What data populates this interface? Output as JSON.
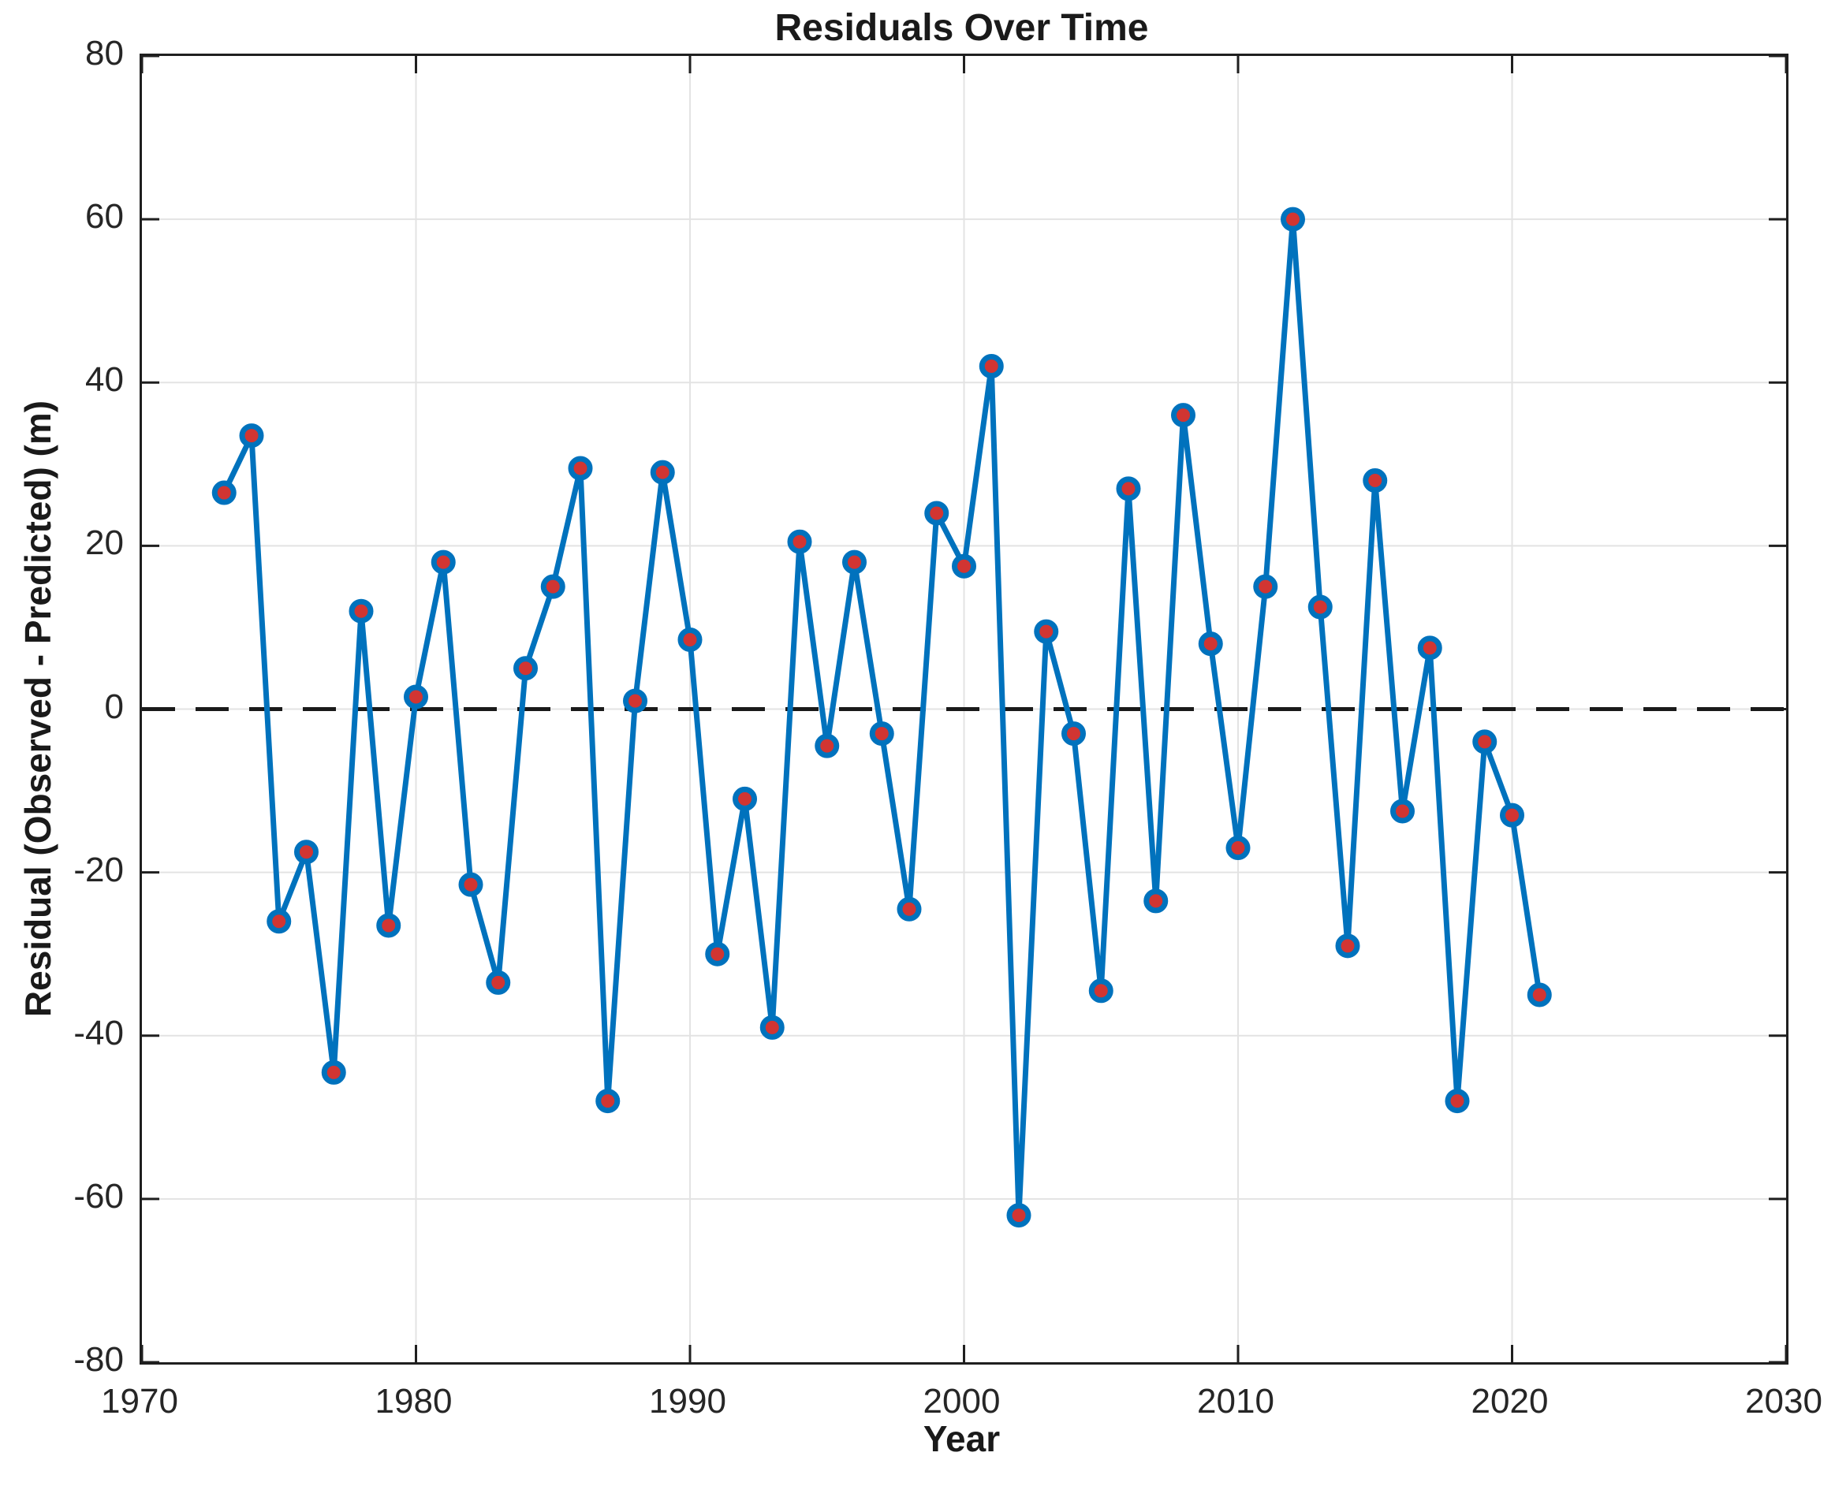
{
  "figure": {
    "title": "Residuals Over Time",
    "x_axis_label": "Year",
    "y_axis_label": "Residual (Observed - Predicted) (m)"
  },
  "chart_data": {
    "type": "line",
    "title": "Residuals Over Time",
    "xlabel": "Year",
    "ylabel": "Residual (Observed - Predicted) (m)",
    "xlim": [
      1970,
      2030
    ],
    "ylim": [
      -80,
      80
    ],
    "x_ticks": [
      1970,
      1980,
      1990,
      2000,
      2010,
      2020,
      2030
    ],
    "y_ticks": [
      -80,
      -60,
      -40,
      -20,
      0,
      20,
      40,
      60,
      80
    ],
    "grid": true,
    "legend": "none",
    "zero_line": {
      "y": 0,
      "style": "dashed",
      "color": "#1a1a1a"
    },
    "colors": {
      "line": "#0072BD",
      "marker_face": "#D13532",
      "marker_edge": "#0072BD",
      "gridline": "#e3e3e3",
      "axis_box": "#1f1f1f",
      "tick_text": "#262626",
      "label_text": "#1a1a1a"
    },
    "series": [
      {
        "name": "residuals",
        "x": [
          1973,
          1974,
          1975,
          1976,
          1977,
          1978,
          1979,
          1980,
          1981,
          1982,
          1983,
          1984,
          1985,
          1986,
          1987,
          1988,
          1989,
          1990,
          1991,
          1992,
          1993,
          1994,
          1995,
          1996,
          1997,
          1998,
          1999,
          2000,
          2001,
          2002,
          2003,
          2004,
          2005,
          2006,
          2007,
          2008,
          2009,
          2010,
          2011,
          2012,
          2013,
          2014,
          2015,
          2016,
          2017,
          2018,
          2019,
          2020,
          2021
        ],
        "y": [
          26.5,
          33.5,
          -26,
          -17.5,
          -44.5,
          12,
          -26.5,
          1.5,
          18,
          -21.5,
          -33.5,
          5,
          15,
          29.5,
          -48,
          1,
          29,
          8.5,
          -30,
          -11,
          -39,
          20.5,
          -4.5,
          18,
          -3,
          -24.5,
          24,
          17.5,
          42,
          -62,
          9.5,
          -3,
          -34.5,
          27,
          -23.5,
          36,
          8,
          -17,
          15,
          60,
          12.5,
          -29,
          28,
          -12.5,
          7.5,
          -48,
          -4,
          -13,
          -35
        ]
      }
    ]
  }
}
